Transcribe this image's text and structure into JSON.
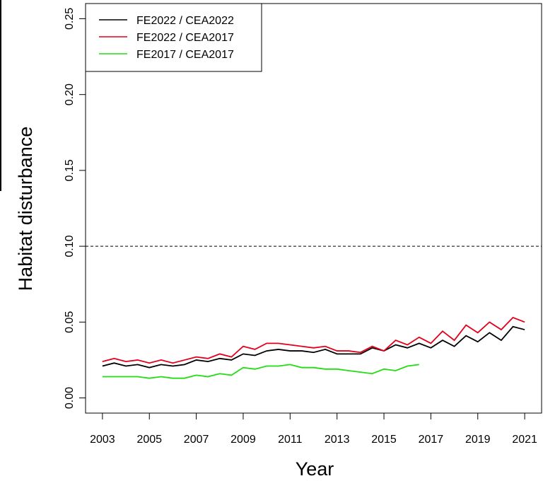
{
  "chart_data": {
    "type": "line",
    "x_label": "Year",
    "y_label": "Habitat disturbance",
    "x": [
      2003,
      2003.5,
      2004,
      2004.5,
      2005,
      2005.5,
      2006,
      2006.5,
      2007,
      2007.5,
      2008,
      2008.5,
      2009,
      2009.5,
      2010,
      2010.5,
      2011,
      2011.5,
      2012,
      2012.5,
      2013,
      2013.5,
      2014,
      2014.5,
      2015,
      2015.5,
      2016,
      2016.5,
      2017,
      2017.5,
      2018,
      2018.5,
      2019,
      2019.5,
      2020,
      2020.5,
      2021
    ],
    "series": [
      {
        "name": "FE2022 / CEA2022",
        "color": "#000000",
        "values": [
          0.021,
          0.023,
          0.021,
          0.022,
          0.02,
          0.022,
          0.021,
          0.022,
          0.025,
          0.024,
          0.026,
          0.025,
          0.029,
          0.028,
          0.031,
          0.032,
          0.031,
          0.031,
          0.03,
          0.032,
          0.029,
          0.029,
          0.029,
          0.033,
          0.031,
          0.035,
          0.033,
          0.036,
          0.033,
          0.038,
          0.034,
          0.041,
          0.037,
          0.043,
          0.038,
          0.047,
          0.045
        ]
      },
      {
        "name": "FE2022 / CEA2017",
        "color": "#e3001b",
        "values": [
          0.024,
          0.026,
          0.024,
          0.025,
          0.023,
          0.025,
          0.023,
          0.025,
          0.027,
          0.026,
          0.029,
          0.027,
          0.034,
          0.032,
          0.036,
          0.036,
          0.035,
          0.034,
          0.033,
          0.034,
          0.031,
          0.031,
          0.03,
          0.034,
          0.031,
          0.038,
          0.035,
          0.04,
          0.036,
          0.044,
          0.038,
          0.048,
          0.043,
          0.05,
          0.045,
          0.053,
          0.05
        ]
      },
      {
        "name": "FE2017 / CEA2017",
        "color": "#22dd11",
        "values": [
          0.014,
          0.014,
          0.014,
          0.014,
          0.013,
          0.014,
          0.013,
          0.013,
          0.015,
          0.014,
          0.016,
          0.015,
          0.02,
          0.019,
          0.021,
          0.021,
          0.022,
          0.02,
          0.02,
          0.019,
          0.019,
          0.018,
          0.017,
          0.016,
          0.019,
          0.018,
          0.021,
          0.022,
          null,
          null,
          null,
          null,
          null,
          null,
          null,
          null,
          null
        ]
      }
    ],
    "xlim": [
      2002.28,
      2021.72
    ],
    "ylim": [
      -0.01,
      0.26
    ],
    "xticks": [
      2003,
      2005,
      2007,
      2009,
      2011,
      2013,
      2015,
      2017,
      2019,
      2021
    ],
    "yticks": [
      {
        "value": 0,
        "label": "0.00"
      },
      {
        "value": 0.05,
        "label": "0.05"
      },
      {
        "value": 0.1,
        "label": "0.10"
      },
      {
        "value": 0.15,
        "label": "0.15"
      },
      {
        "value": 0.2,
        "label": "0.20"
      },
      {
        "value": 0.25,
        "label": "0.25"
      }
    ],
    "reference_line": 0.1,
    "legend": "top-left"
  }
}
